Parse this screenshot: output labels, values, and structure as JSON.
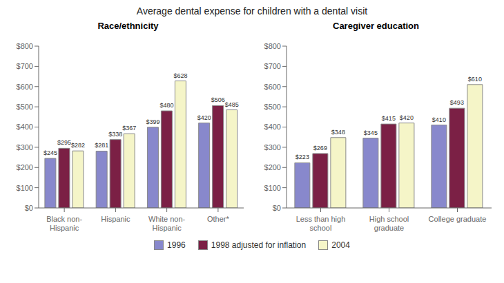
{
  "title": "Average dental expense for children with a dental visit",
  "legend": "bottom",
  "chart_data": [
    {
      "type": "bar",
      "title": "Race/ethnicity",
      "categories": [
        "Black non-\nHispanic",
        "Hispanic",
        "White non-\nHispanic",
        "Other*"
      ],
      "series": [
        {
          "name": "1996",
          "color": "#8888cc",
          "values": [
            245,
            281,
            399,
            420
          ],
          "value_labels": [
            "$245",
            "$281",
            "$399",
            "$420"
          ]
        },
        {
          "name": "1998 adjusted for inflation",
          "color": "#7b2045",
          "values": [
            295,
            338,
            480,
            506
          ],
          "value_labels": [
            "$295",
            "$338",
            "$480",
            "$506"
          ]
        },
        {
          "name": "2004",
          "color": "#f5f5c8",
          "values": [
            282,
            367,
            628,
            485
          ],
          "value_labels": [
            "$282",
            "$367",
            "$628",
            "$485"
          ]
        }
      ],
      "ylim": [
        0,
        800
      ],
      "yticks": [
        {
          "value": 0,
          "label": "$0"
        },
        {
          "value": 100,
          "label": "$100"
        },
        {
          "value": 200,
          "label": "$200"
        },
        {
          "value": 300,
          "label": "$300"
        },
        {
          "value": 400,
          "label": "$400"
        },
        {
          "value": 500,
          "label": "$500"
        },
        {
          "value": 600,
          "label": "$600"
        },
        {
          "value": 700,
          "label": "$700"
        },
        {
          "value": 800,
          "label": "$800"
        }
      ],
      "data_labels": true,
      "grid": false
    },
    {
      "type": "bar",
      "title": "Caregiver education",
      "categories": [
        "Less than high\nschool",
        "High school\ngraduate",
        "College graduate"
      ],
      "series": [
        {
          "name": "1996",
          "color": "#8888cc",
          "values": [
            223,
            345,
            410
          ],
          "value_labels": [
            "$223",
            "$345",
            "$410"
          ]
        },
        {
          "name": "1998 adjusted for inflation",
          "color": "#7b2045",
          "values": [
            269,
            415,
            493
          ],
          "value_labels": [
            "$269",
            "$415",
            "$493"
          ]
        },
        {
          "name": "2004",
          "color": "#f5f5c8",
          "values": [
            348,
            420,
            610
          ],
          "value_labels": [
            "$348",
            "$420",
            "$610"
          ]
        }
      ],
      "ylim": [
        0,
        800
      ],
      "yticks": [
        {
          "value": 0,
          "label": "$0"
        },
        {
          "value": 100,
          "label": "$100"
        },
        {
          "value": 200,
          "label": "$200"
        },
        {
          "value": 300,
          "label": "$300"
        },
        {
          "value": 400,
          "label": "$400"
        },
        {
          "value": 500,
          "label": "$500"
        },
        {
          "value": 600,
          "label": "$600"
        },
        {
          "value": 700,
          "label": "$700"
        },
        {
          "value": 800,
          "label": "$800"
        }
      ],
      "data_labels": true,
      "grid": false
    }
  ]
}
